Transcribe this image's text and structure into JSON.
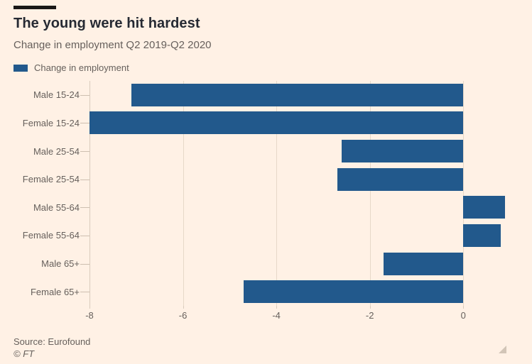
{
  "colors": {
    "background": "#fff1e5",
    "bar": "#22598c",
    "title_text": "#262a33",
    "muted_text": "#66605c",
    "gridline": "#e7d8c8",
    "motif": "#1a1817"
  },
  "header": {
    "title": "The young were hit hardest",
    "subtitle": "Change in employment Q2 2019-Q2 2020"
  },
  "legend": {
    "label": "Change in employment"
  },
  "chart_data": {
    "type": "bar",
    "orientation": "horizontal",
    "title": "The young were hit hardest",
    "subtitle": "Change in employment Q2 2019-Q2 2020",
    "series_name": "Change in employment",
    "categories": [
      "Male 15-24",
      "Female 15-24",
      "Male 25-54",
      "Female 25-54",
      "Male 55-64",
      "Female 55-64",
      "Male 65+",
      "Female 65+"
    ],
    "values": [
      -7.1,
      -8.0,
      -2.6,
      -2.7,
      0.9,
      0.8,
      -1.7,
      -4.7
    ],
    "xlabel": "",
    "ylabel": "",
    "xlim": [
      -8,
      1
    ],
    "xticks": [
      -8,
      -6,
      -4,
      -2,
      0
    ],
    "grid": true,
    "legend_position": "top-left"
  },
  "footer": {
    "source": "Source: Eurofound",
    "copyright": "© FT"
  }
}
